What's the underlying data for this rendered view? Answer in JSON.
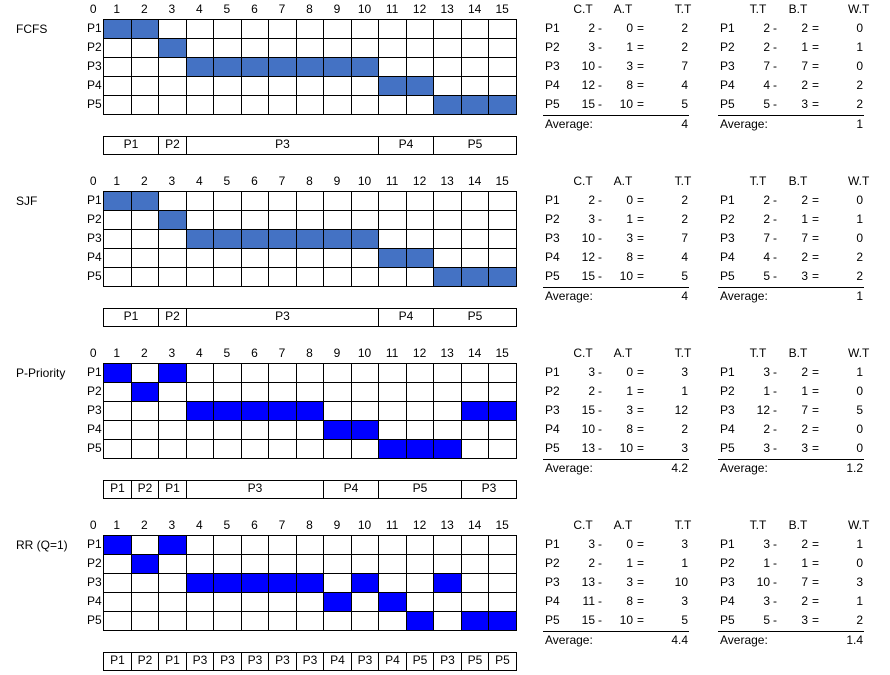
{
  "colors": {
    "fill_light": "#4472C4",
    "fill_dark": "#0000FF",
    "grid": "#000000"
  },
  "time_labels": [
    "0",
    "1",
    "2",
    "3",
    "4",
    "5",
    "6",
    "7",
    "8",
    "9",
    "10",
    "11",
    "12",
    "13",
    "14",
    "15"
  ],
  "sections": [
    {
      "name": "FCFS",
      "fill": "light",
      "rows": [
        {
          "label": "P1",
          "cells": [
            1,
            2
          ]
        },
        {
          "label": "P2",
          "cells": [
            3
          ]
        },
        {
          "label": "P3",
          "cells": [
            4,
            5,
            6,
            7,
            8,
            9,
            10
          ]
        },
        {
          "label": "P4",
          "cells": [
            11,
            12
          ]
        },
        {
          "label": "P5",
          "cells": [
            13,
            14,
            15
          ]
        }
      ],
      "gantt": [
        {
          "label": "P1",
          "span": 2
        },
        {
          "label": "P2",
          "span": 1
        },
        {
          "label": "P3",
          "span": 7
        },
        {
          "label": "P4",
          "span": 2
        },
        {
          "label": "P5",
          "span": 3
        }
      ],
      "table1": {
        "headers": [
          "C.T",
          "A.T",
          "T.T"
        ],
        "rows": [
          {
            "p": "P1",
            "a": "2",
            "op1": "-",
            "b": "0",
            "op2": "=",
            "c": "2"
          },
          {
            "p": "P2",
            "a": "3",
            "op1": "-",
            "b": "1",
            "op2": "=",
            "c": "2"
          },
          {
            "p": "P3",
            "a": "10",
            "op1": "-",
            "b": "3",
            "op2": "=",
            "c": "7"
          },
          {
            "p": "P4",
            "a": "12",
            "op1": "-",
            "b": "8",
            "op2": "=",
            "c": "4"
          },
          {
            "p": "P5",
            "a": "15",
            "op1": "-",
            "b": "10",
            "op2": "=",
            "c": "5"
          }
        ],
        "avg_label": "Average:",
        "avg": "4"
      },
      "table2": {
        "headers": [
          "T.T",
          "B.T",
          "W.T"
        ],
        "rows": [
          {
            "p": "P1",
            "a": "2",
            "op1": "-",
            "b": "2",
            "op2": "=",
            "c": "0"
          },
          {
            "p": "P2",
            "a": "2",
            "op1": "-",
            "b": "1",
            "op2": "=",
            "c": "1"
          },
          {
            "p": "P3",
            "a": "7",
            "op1": "-",
            "b": "7",
            "op2": "=",
            "c": "0"
          },
          {
            "p": "P4",
            "a": "4",
            "op1": "-",
            "b": "2",
            "op2": "=",
            "c": "2"
          },
          {
            "p": "P5",
            "a": "5",
            "op1": "-",
            "b": "3",
            "op2": "=",
            "c": "2"
          }
        ],
        "avg_label": "Average:",
        "avg": "1"
      }
    },
    {
      "name": "SJF",
      "fill": "light",
      "rows": [
        {
          "label": "P1",
          "cells": [
            1,
            2
          ]
        },
        {
          "label": "P2",
          "cells": [
            3
          ]
        },
        {
          "label": "P3",
          "cells": [
            4,
            5,
            6,
            7,
            8,
            9,
            10
          ]
        },
        {
          "label": "P4",
          "cells": [
            11,
            12
          ]
        },
        {
          "label": "P5",
          "cells": [
            13,
            14,
            15
          ]
        }
      ],
      "gantt": [
        {
          "label": "P1",
          "span": 2
        },
        {
          "label": "P2",
          "span": 1
        },
        {
          "label": "P3",
          "span": 7
        },
        {
          "label": "P4",
          "span": 2
        },
        {
          "label": "P5",
          "span": 3
        }
      ],
      "table1": {
        "headers": [
          "C.T",
          "A.T",
          "T.T"
        ],
        "rows": [
          {
            "p": "P1",
            "a": "2",
            "op1": "-",
            "b": "0",
            "op2": "=",
            "c": "2"
          },
          {
            "p": "P2",
            "a": "3",
            "op1": "-",
            "b": "1",
            "op2": "=",
            "c": "2"
          },
          {
            "p": "P3",
            "a": "10",
            "op1": "-",
            "b": "3",
            "op2": "=",
            "c": "7"
          },
          {
            "p": "P4",
            "a": "12",
            "op1": "-",
            "b": "8",
            "op2": "=",
            "c": "4"
          },
          {
            "p": "P5",
            "a": "15",
            "op1": "-",
            "b": "10",
            "op2": "=",
            "c": "5"
          }
        ],
        "avg_label": "Average:",
        "avg": "4"
      },
      "table2": {
        "headers": [
          "T.T",
          "B.T",
          "W.T"
        ],
        "rows": [
          {
            "p": "P1",
            "a": "2",
            "op1": "-",
            "b": "2",
            "op2": "=",
            "c": "0"
          },
          {
            "p": "P2",
            "a": "2",
            "op1": "-",
            "b": "1",
            "op2": "=",
            "c": "1"
          },
          {
            "p": "P3",
            "a": "7",
            "op1": "-",
            "b": "7",
            "op2": "=",
            "c": "0"
          },
          {
            "p": "P4",
            "a": "4",
            "op1": "-",
            "b": "2",
            "op2": "=",
            "c": "2"
          },
          {
            "p": "P5",
            "a": "5",
            "op1": "-",
            "b": "3",
            "op2": "=",
            "c": "2"
          }
        ],
        "avg_label": "Average:",
        "avg": "1"
      }
    },
    {
      "name": "P-Priority",
      "fill": "dark",
      "rows": [
        {
          "label": "P1",
          "cells": [
            1,
            3
          ]
        },
        {
          "label": "P2",
          "cells": [
            2
          ]
        },
        {
          "label": "P3",
          "cells": [
            4,
            5,
            6,
            7,
            8,
            14,
            15
          ]
        },
        {
          "label": "P4",
          "cells": [
            9,
            10
          ]
        },
        {
          "label": "P5",
          "cells": [
            11,
            12,
            13
          ]
        }
      ],
      "gantt": [
        {
          "label": "P1",
          "span": 1
        },
        {
          "label": "P2",
          "span": 1
        },
        {
          "label": "P1",
          "span": 1
        },
        {
          "label": "P3",
          "span": 5
        },
        {
          "label": "P4",
          "span": 2
        },
        {
          "label": "P5",
          "span": 3
        },
        {
          "label": "P3",
          "span": 2
        }
      ],
      "table1": {
        "headers": [
          "C.T",
          "A.T",
          "T.T"
        ],
        "rows": [
          {
            "p": "P1",
            "a": "3",
            "op1": "-",
            "b": "0",
            "op2": "=",
            "c": "3"
          },
          {
            "p": "P2",
            "a": "2",
            "op1": "-",
            "b": "1",
            "op2": "=",
            "c": "1"
          },
          {
            "p": "P3",
            "a": "15",
            "op1": "-",
            "b": "3",
            "op2": "=",
            "c": "12"
          },
          {
            "p": "P4",
            "a": "10",
            "op1": "-",
            "b": "8",
            "op2": "=",
            "c": "2"
          },
          {
            "p": "P5",
            "a": "13",
            "op1": "-",
            "b": "10",
            "op2": "=",
            "c": "3"
          }
        ],
        "avg_label": "Average:",
        "avg": "4.2"
      },
      "table2": {
        "headers": [
          "T.T",
          "B.T",
          "W.T"
        ],
        "rows": [
          {
            "p": "P1",
            "a": "3",
            "op1": "-",
            "b": "2",
            "op2": "=",
            "c": "1"
          },
          {
            "p": "P2",
            "a": "1",
            "op1": "-",
            "b": "1",
            "op2": "=",
            "c": "0"
          },
          {
            "p": "P3",
            "a": "12",
            "op1": "-",
            "b": "7",
            "op2": "=",
            "c": "5"
          },
          {
            "p": "P4",
            "a": "2",
            "op1": "-",
            "b": "2",
            "op2": "=",
            "c": "0"
          },
          {
            "p": "P5",
            "a": "3",
            "op1": "-",
            "b": "3",
            "op2": "=",
            "c": "0"
          }
        ],
        "avg_label": "Average:",
        "avg": "1.2"
      }
    },
    {
      "name": "RR (Q=1)",
      "fill": "dark",
      "rows": [
        {
          "label": "P1",
          "cells": [
            1,
            3
          ]
        },
        {
          "label": "P2",
          "cells": [
            2
          ]
        },
        {
          "label": "P3",
          "cells": [
            4,
            5,
            6,
            7,
            8,
            10,
            13
          ]
        },
        {
          "label": "P4",
          "cells": [
            9,
            11
          ]
        },
        {
          "label": "P5",
          "cells": [
            12,
            14,
            15
          ]
        }
      ],
      "gantt": [
        {
          "label": "P1",
          "span": 1
        },
        {
          "label": "P2",
          "span": 1
        },
        {
          "label": "P1",
          "span": 1
        },
        {
          "label": "P3",
          "span": 1
        },
        {
          "label": "P3",
          "span": 1
        },
        {
          "label": "P3",
          "span": 1
        },
        {
          "label": "P3",
          "span": 1
        },
        {
          "label": "P3",
          "span": 1
        },
        {
          "label": "P4",
          "span": 1
        },
        {
          "label": "P3",
          "span": 1
        },
        {
          "label": "P4",
          "span": 1
        },
        {
          "label": "P5",
          "span": 1
        },
        {
          "label": "P3",
          "span": 1
        },
        {
          "label": "P5",
          "span": 1
        },
        {
          "label": "P5",
          "span": 1
        }
      ],
      "table1": {
        "headers": [
          "C.T",
          "A.T",
          "T.T"
        ],
        "rows": [
          {
            "p": "P1",
            "a": "3",
            "op1": "-",
            "b": "0",
            "op2": "=",
            "c": "3"
          },
          {
            "p": "P2",
            "a": "2",
            "op1": "-",
            "b": "1",
            "op2": "=",
            "c": "1"
          },
          {
            "p": "P3",
            "a": "13",
            "op1": "-",
            "b": "3",
            "op2": "=",
            "c": "10"
          },
          {
            "p": "P4",
            "a": "11",
            "op1": "-",
            "b": "8",
            "op2": "=",
            "c": "3"
          },
          {
            "p": "P5",
            "a": "15",
            "op1": "-",
            "b": "10",
            "op2": "=",
            "c": "5"
          }
        ],
        "avg_label": "Average:",
        "avg": "4.4"
      },
      "table2": {
        "headers": [
          "T.T",
          "B.T",
          "W.T"
        ],
        "rows": [
          {
            "p": "P1",
            "a": "3",
            "op1": "-",
            "b": "2",
            "op2": "=",
            "c": "1"
          },
          {
            "p": "P2",
            "a": "1",
            "op1": "-",
            "b": "1",
            "op2": "=",
            "c": "0"
          },
          {
            "p": "P3",
            "a": "10",
            "op1": "-",
            "b": "7",
            "op2": "=",
            "c": "3"
          },
          {
            "p": "P4",
            "a": "3",
            "op1": "-",
            "b": "2",
            "op2": "=",
            "c": "1"
          },
          {
            "p": "P5",
            "a": "5",
            "op1": "-",
            "b": "3",
            "op2": "=",
            "c": "2"
          }
        ],
        "avg_label": "Average:",
        "avg": "1.4"
      }
    }
  ]
}
